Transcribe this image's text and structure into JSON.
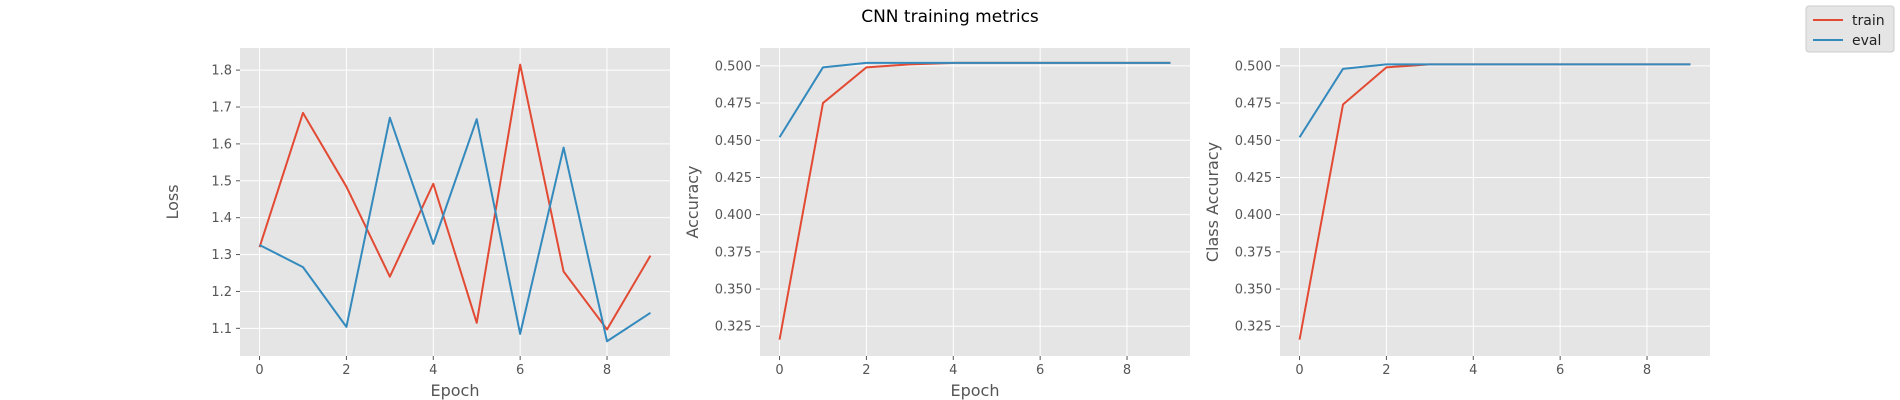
{
  "figure": {
    "title": "CNN training metrics"
  },
  "legend": {
    "placement": "top-right (figure)",
    "entries": [
      {
        "label": "train",
        "color": "#E24A33"
      },
      {
        "label": "eval",
        "color": "#348ABD"
      }
    ]
  },
  "chart_data": [
    {
      "type": "line",
      "title": "",
      "xlabel": "Epoch",
      "ylabel": "Loss",
      "xlim": [
        -0.45,
        9.45
      ],
      "ylim": [
        1.025,
        1.86
      ],
      "xticks": [
        0,
        2,
        4,
        6,
        8
      ],
      "yticks": [
        1.1,
        1.2,
        1.3,
        1.4,
        1.5,
        1.6,
        1.7,
        1.8
      ],
      "grid": true,
      "x": [
        0,
        1,
        2,
        3,
        4,
        5,
        6,
        7,
        8,
        9
      ],
      "series": [
        {
          "name": "train",
          "color": "#E24A33",
          "values": [
            1.32,
            1.684,
            1.484,
            1.24,
            1.492,
            1.115,
            1.815,
            1.254,
            1.097,
            1.297
          ]
        },
        {
          "name": "eval",
          "color": "#348ABD",
          "values": [
            1.326,
            1.266,
            1.104,
            1.671,
            1.329,
            1.667,
            1.085,
            1.59,
            1.065,
            1.142
          ]
        }
      ]
    },
    {
      "type": "line",
      "title": "",
      "xlabel": "Epoch",
      "ylabel": "Accuracy",
      "xlim": [
        -0.45,
        9.45
      ],
      "ylim": [
        0.305,
        0.512
      ],
      "xticks": [
        0,
        2,
        4,
        6,
        8
      ],
      "yticks": [
        0.325,
        0.35,
        0.375,
        0.4,
        0.425,
        0.45,
        0.475,
        0.5
      ],
      "grid": true,
      "x": [
        0,
        1,
        2,
        3,
        4,
        5,
        6,
        7,
        8,
        9
      ],
      "series": [
        {
          "name": "train",
          "color": "#E24A33",
          "values": [
            0.316,
            0.475,
            0.499,
            0.501,
            0.502,
            0.502,
            0.502,
            0.502,
            0.502,
            0.502
          ]
        },
        {
          "name": "eval",
          "color": "#348ABD",
          "values": [
            0.452,
            0.499,
            0.502,
            0.502,
            0.502,
            0.502,
            0.502,
            0.502,
            0.502,
            0.502
          ]
        }
      ]
    },
    {
      "type": "line",
      "title": "",
      "xlabel": "",
      "ylabel": "Class Accuracy",
      "xlim": [
        -0.45,
        9.45
      ],
      "ylim": [
        0.305,
        0.512
      ],
      "xticks": [
        0,
        2,
        4,
        6,
        8
      ],
      "yticks": [
        0.325,
        0.35,
        0.375,
        0.4,
        0.425,
        0.45,
        0.475,
        0.5
      ],
      "grid": true,
      "x": [
        0,
        1,
        2,
        3,
        4,
        5,
        6,
        7,
        8,
        9
      ],
      "series": [
        {
          "name": "train",
          "color": "#E24A33",
          "values": [
            0.316,
            0.474,
            0.499,
            0.501,
            0.501,
            0.501,
            0.501,
            0.501,
            0.501,
            0.501
          ]
        },
        {
          "name": "eval",
          "color": "#348ABD",
          "values": [
            0.452,
            0.498,
            0.501,
            0.501,
            0.501,
            0.501,
            0.501,
            0.501,
            0.501,
            0.501
          ]
        }
      ]
    }
  ]
}
